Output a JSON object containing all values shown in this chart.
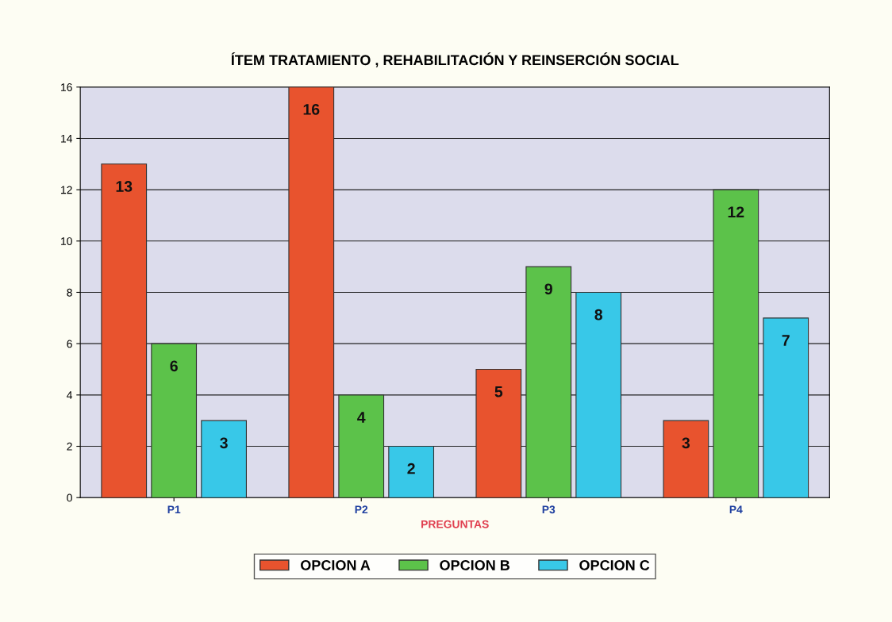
{
  "chart_data": {
    "type": "bar",
    "title": "ÍTEM TRATAMIENTO , REHABILITACIÓN Y REINSERCIÓN SOCIAL",
    "xlabel": "PREGUNTAS",
    "categories": [
      "P1",
      "P2",
      "P3",
      "P4"
    ],
    "series": [
      {
        "name": "OPCION A",
        "color": "#e8532e",
        "values": [
          13,
          16,
          5,
          3
        ]
      },
      {
        "name": "OPCION B",
        "color": "#5cc24a",
        "values": [
          6,
          4,
          9,
          12
        ]
      },
      {
        "name": "OPCION C",
        "color": "#38c8e8",
        "values": [
          3,
          2,
          8,
          7
        ]
      }
    ],
    "ylim": [
      0,
      16
    ],
    "yticks": [
      0,
      2,
      4,
      6,
      8,
      10,
      12,
      14,
      16
    ],
    "grid": "y",
    "legend": "bottom",
    "data_labels": true
  }
}
